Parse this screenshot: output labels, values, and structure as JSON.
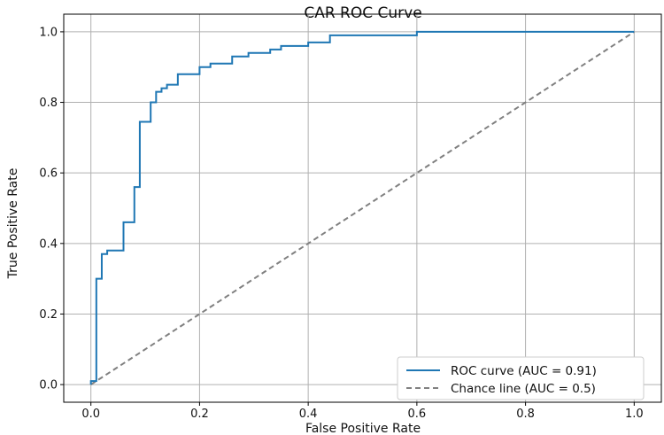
{
  "chart_data": {
    "type": "line",
    "title": "CAR ROC Curve",
    "xlabel": "False Positive Rate",
    "ylabel": "True Positive Rate",
    "xlim": [
      -0.05,
      1.05
    ],
    "ylim": [
      -0.05,
      1.05
    ],
    "xticks": [
      0.0,
      0.2,
      0.4,
      0.6,
      0.8,
      1.0
    ],
    "yticks": [
      0.0,
      0.2,
      0.4,
      0.6,
      0.8,
      1.0
    ],
    "xtick_labels": [
      "0.0",
      "0.2",
      "0.4",
      "0.6",
      "0.8",
      "1.0"
    ],
    "ytick_labels": [
      "0.0",
      "0.2",
      "0.4",
      "0.6",
      "0.8",
      "1.0"
    ],
    "grid": true,
    "legend_position": "bottom-right",
    "series": [
      {
        "name": "ROC curve (AUC = 0.91)",
        "color": "#1f77b4",
        "style": "solid",
        "x": [
          0,
          0,
          0.01,
          0.01,
          0.02,
          0.02,
          0.03,
          0.03,
          0.06,
          0.06,
          0.08,
          0.08,
          0.09,
          0.09,
          0.11,
          0.11,
          0.12,
          0.12,
          0.13,
          0.13,
          0.14,
          0.14,
          0.16,
          0.16,
          0.2,
          0.2,
          0.22,
          0.22,
          0.26,
          0.26,
          0.29,
          0.29,
          0.33,
          0.33,
          0.35,
          0.35,
          0.4,
          0.4,
          0.44,
          0.44,
          0.6,
          0.6,
          1.0
        ],
        "y": [
          0,
          0.01,
          0.01,
          0.3,
          0.3,
          0.37,
          0.37,
          0.38,
          0.38,
          0.46,
          0.46,
          0.56,
          0.56,
          0.745,
          0.745,
          0.8,
          0.8,
          0.83,
          0.83,
          0.84,
          0.84,
          0.85,
          0.85,
          0.88,
          0.88,
          0.9,
          0.9,
          0.91,
          0.91,
          0.93,
          0.93,
          0.94,
          0.94,
          0.95,
          0.95,
          0.96,
          0.96,
          0.97,
          0.97,
          0.99,
          0.99,
          1.0,
          1.0
        ]
      },
      {
        "name": "Chance line (AUC = 0.5)",
        "color": "#808080",
        "style": "dashed",
        "x": [
          0,
          1
        ],
        "y": [
          0,
          1
        ]
      }
    ]
  }
}
